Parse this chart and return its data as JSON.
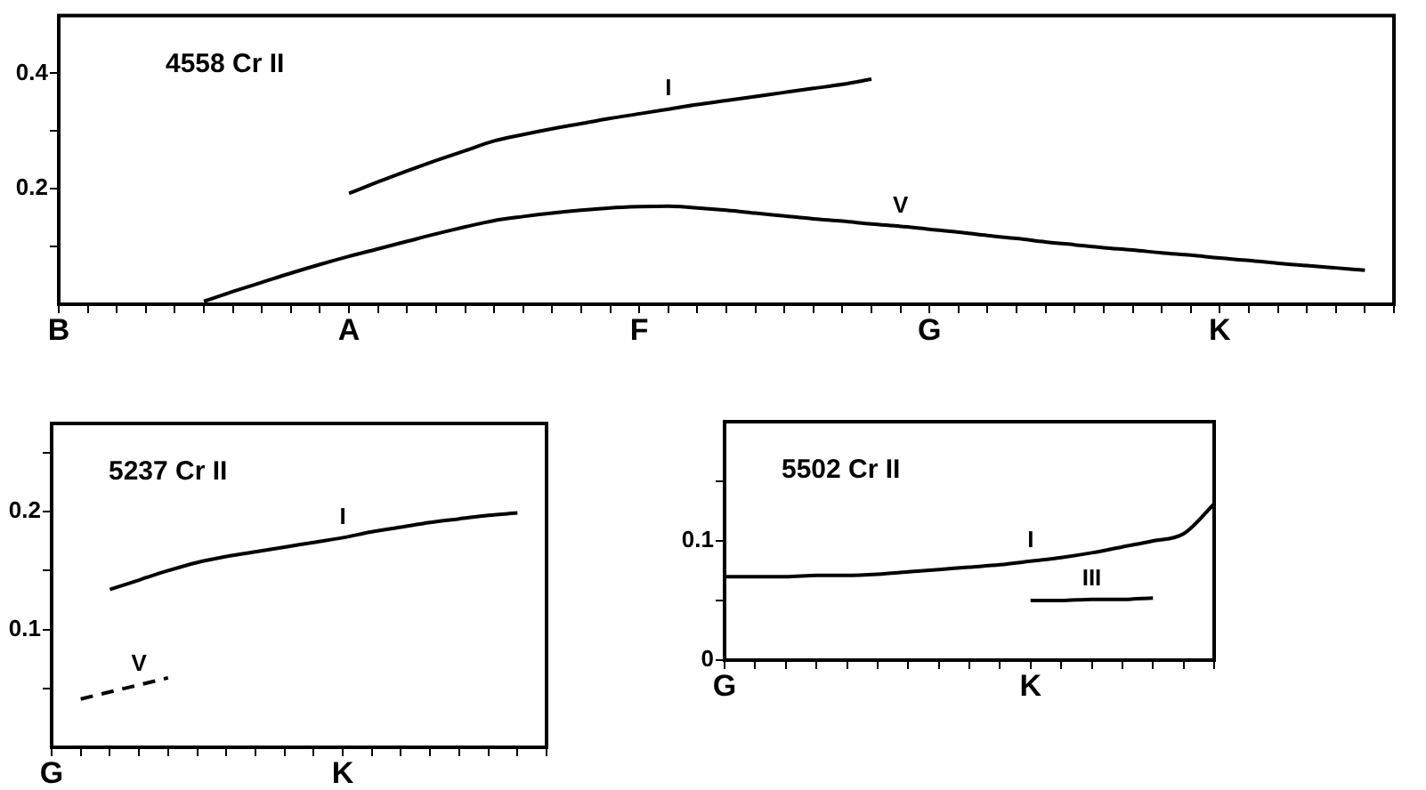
{
  "chart_data": [
    {
      "type": "line",
      "title": "4558 Cr II",
      "ylim": [
        0,
        0.5
      ],
      "categories": [
        "B",
        null,
        null,
        null,
        null,
        null,
        null,
        null,
        null,
        null,
        "A",
        null,
        null,
        null,
        null,
        null,
        null,
        null,
        null,
        null,
        "F",
        null,
        null,
        null,
        null,
        null,
        null,
        null,
        null,
        null,
        "G",
        null,
        null,
        null,
        null,
        null,
        null,
        null,
        null,
        null,
        "K",
        null,
        null,
        null,
        null,
        null,
        null
      ],
      "yticks": [
        {
          "value": 0.1,
          "label": null
        },
        {
          "value": 0.2,
          "label": "0.2"
        },
        {
          "value": 0.3,
          "label": null
        },
        {
          "value": 0.4,
          "label": "0.4"
        }
      ],
      "series": [
        {
          "name": "I",
          "color": "#000000",
          "values": [
            null,
            null,
            null,
            null,
            null,
            null,
            null,
            null,
            null,
            null,
            0.192,
            0.212,
            0.231,
            0.249,
            0.266,
            0.283,
            0.294,
            0.304,
            0.313,
            0.322,
            0.33,
            0.338,
            0.346,
            0.353,
            0.36,
            0.367,
            0.374,
            0.381,
            0.39,
            null,
            null,
            null,
            null,
            null,
            null,
            null,
            null,
            null,
            null,
            null,
            null,
            null,
            null,
            null,
            null,
            null,
            null
          ]
        },
        {
          "name": "V",
          "color": "#000000",
          "values": [
            null,
            null,
            null,
            null,
            null,
            0.005,
            0.022,
            0.038,
            0.054,
            0.069,
            0.083,
            0.096,
            0.109,
            0.122,
            0.134,
            0.145,
            0.152,
            0.158,
            0.163,
            0.167,
            0.169,
            0.17,
            0.167,
            0.163,
            0.158,
            0.153,
            0.148,
            0.144,
            0.139,
            0.135,
            0.13,
            0.125,
            0.119,
            0.114,
            0.108,
            0.103,
            0.098,
            0.094,
            0.089,
            0.085,
            0.08,
            0.076,
            0.071,
            0.067,
            0.063,
            0.059,
            null
          ]
        }
      ]
    },
    {
      "type": "line",
      "title": "5237 Cr II",
      "ylim": [
        0,
        0.275
      ],
      "categories": [
        "G",
        null,
        null,
        null,
        null,
        null,
        null,
        null,
        null,
        null,
        "K",
        null,
        null,
        null,
        null,
        null,
        null,
        null
      ],
      "yticks": [
        {
          "value": 0.05,
          "label": null
        },
        {
          "value": 0.1,
          "label": "0.1"
        },
        {
          "value": 0.15,
          "label": null
        },
        {
          "value": 0.2,
          "label": "0.2"
        },
        {
          "value": 0.25,
          "label": null
        }
      ],
      "series": [
        {
          "name": "I",
          "color": "#000000",
          "values": [
            null,
            null,
            0.134,
            0.142,
            0.15,
            0.157,
            0.162,
            0.166,
            0.17,
            0.174,
            0.178,
            0.183,
            0.187,
            0.191,
            0.194,
            0.197,
            0.199,
            null
          ]
        },
        {
          "name": "V",
          "color": "#000000",
          "line_style": "dashed",
          "values": [
            null,
            0.041,
            0.047,
            0.053,
            0.059,
            null,
            null,
            null,
            null,
            null,
            null,
            null,
            null,
            null,
            null,
            null,
            null,
            null
          ]
        }
      ]
    },
    {
      "type": "line",
      "title": "5502 Cr II",
      "ylim": [
        0,
        0.2
      ],
      "categories": [
        "G",
        null,
        null,
        null,
        null,
        null,
        null,
        null,
        null,
        null,
        "K",
        null,
        null,
        null,
        null,
        null,
        null
      ],
      "yticks": [
        0,
        {
          "value": 0.05,
          "label": null
        },
        {
          "value": 0.1,
          "label": "0.1"
        },
        {
          "value": 0.15,
          "label": null
        }
      ],
      "series": [
        {
          "name": "I",
          "color": "#000000",
          "values": [
            0.07,
            0.07,
            0.07,
            0.071,
            0.071,
            0.072,
            0.074,
            0.076,
            0.078,
            0.08,
            0.083,
            0.086,
            0.09,
            0.095,
            0.1,
            0.106,
            0.131
          ]
        },
        {
          "name": "III",
          "color": "#000000",
          "values": [
            null,
            null,
            null,
            null,
            null,
            null,
            null,
            null,
            null,
            null,
            0.05,
            0.05,
            0.051,
            0.051,
            0.052,
            null,
            null
          ]
        }
      ]
    }
  ]
}
